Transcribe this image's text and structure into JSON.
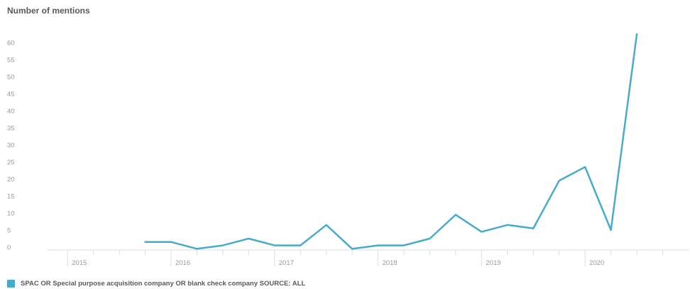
{
  "colors": {
    "series": "#4aabc9",
    "axis_text": "#999999",
    "title_text": "#555a60",
    "axis_line": "#dddddd"
  },
  "chart_data": {
    "type": "line",
    "ylabel": "Number of mentions",
    "ylim": [
      0,
      62
    ],
    "yticks": [
      0,
      5,
      10,
      15,
      20,
      25,
      30,
      35,
      40,
      45,
      50,
      55,
      60
    ],
    "xlim": [
      2014.8,
      2021.0
    ],
    "year_labels": [
      "2015",
      "2016",
      "2017",
      "2018",
      "2019",
      "2020"
    ],
    "grid": false,
    "legend_position": "bottom-left",
    "series": [
      {
        "name": "SPAC OR Special purpose acquisition company OR blank check company SOURCE: ALL",
        "color": "#4aabc9",
        "x": [
          2015.75,
          2016.0,
          2016.25,
          2016.5,
          2016.75,
          2017.0,
          2017.25,
          2017.5,
          2017.75,
          2018.0,
          2018.25,
          2018.5,
          2018.75,
          2019.0,
          2019.25,
          2019.5,
          2019.75,
          2020.0,
          2020.25,
          2020.5
        ],
        "values": [
          1.5,
          1.5,
          -0.5,
          0.5,
          2.5,
          0.5,
          0.5,
          6.5,
          -0.5,
          0.5,
          0.5,
          2.5,
          9.5,
          4.5,
          6.5,
          5.5,
          19.5,
          23.5,
          5,
          62.5
        ]
      }
    ]
  }
}
